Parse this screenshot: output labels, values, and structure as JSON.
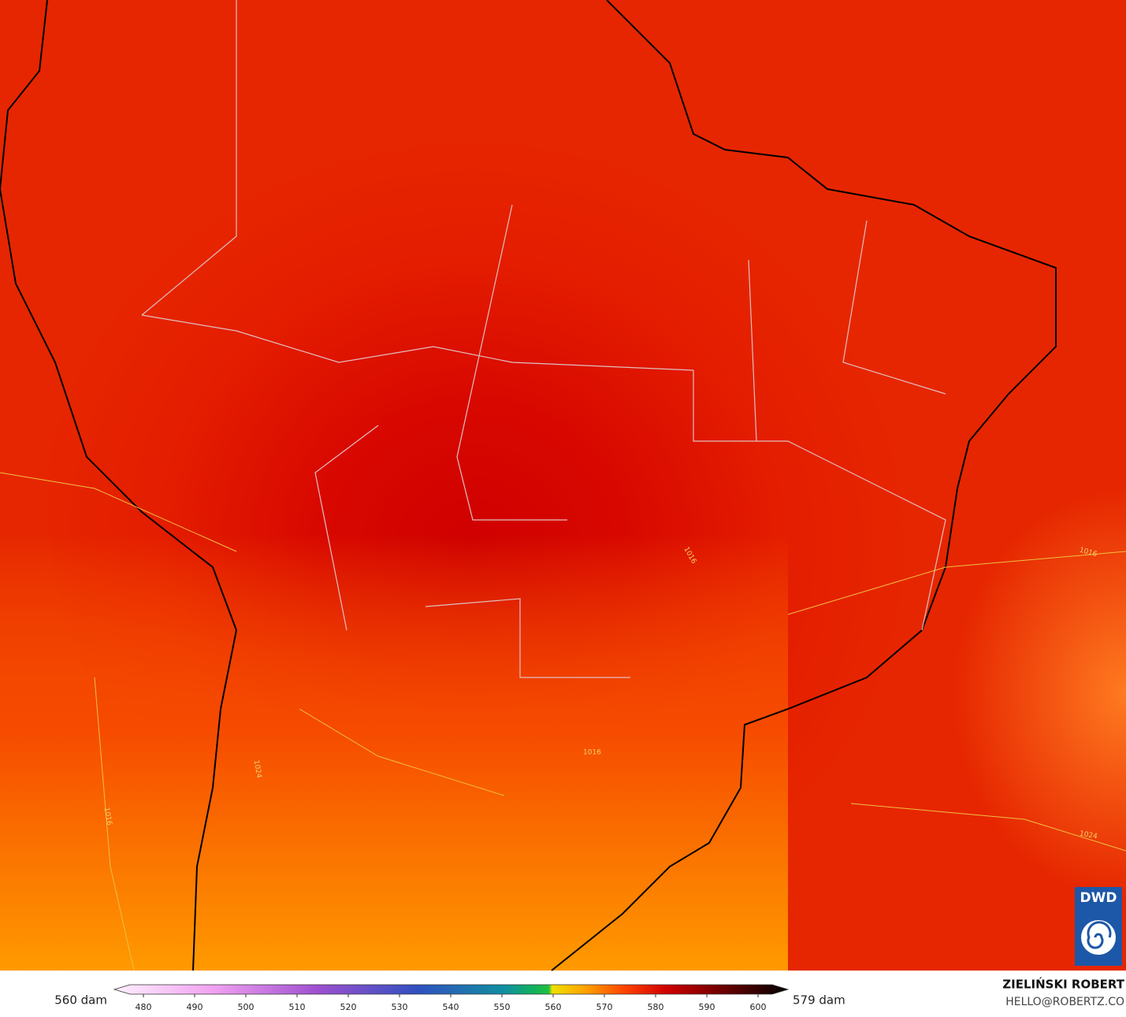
{
  "map": {
    "contour_labels": [
      "1016",
      "1016",
      "1016",
      "1016",
      "1024",
      "1024"
    ]
  },
  "legend": {
    "min_label": "560 dam",
    "max_label": "579 dam",
    "ticks": [
      480,
      490,
      500,
      510,
      520,
      530,
      540,
      550,
      560,
      570,
      580,
      590,
      600
    ]
  },
  "credits": {
    "author": "ZIELIŃSKI ROBERT",
    "contact": "HELLO@ROBERTZ.CO",
    "logo": "DWD"
  }
}
